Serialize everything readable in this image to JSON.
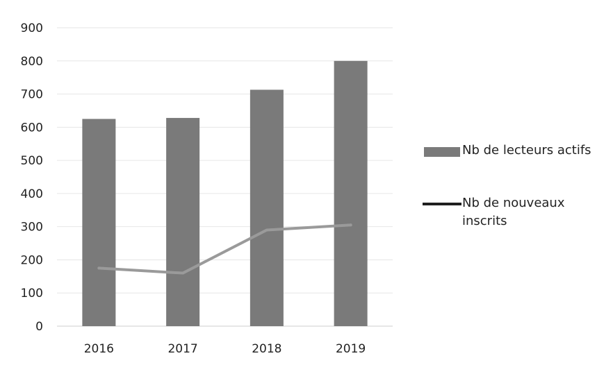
{
  "chart_data": {
    "type": "bar",
    "categories": [
      "2016",
      "2017",
      "2018",
      "2019"
    ],
    "series": [
      {
        "name": "Nb de lecteurs actifs",
        "type": "bar",
        "values": [
          625,
          628,
          713,
          800
        ]
      },
      {
        "name": "Nb de nouveaux inscrits",
        "type": "line",
        "values": [
          175,
          160,
          290,
          305
        ]
      }
    ],
    "yticks": [
      "0",
      "100",
      "200",
      "300",
      "400",
      "500",
      "600",
      "700",
      "800",
      "900"
    ],
    "ylim": [
      0,
      900
    ],
    "grid": true,
    "legend_position": "right",
    "title": "",
    "xlabel": "",
    "ylabel": "",
    "colors": {
      "bar": "#7a7a7a",
      "line": "#9a9a9a",
      "legend_line": "#1f1f1f",
      "grid": "#e6e6e6",
      "axis": "#cccccc"
    }
  }
}
